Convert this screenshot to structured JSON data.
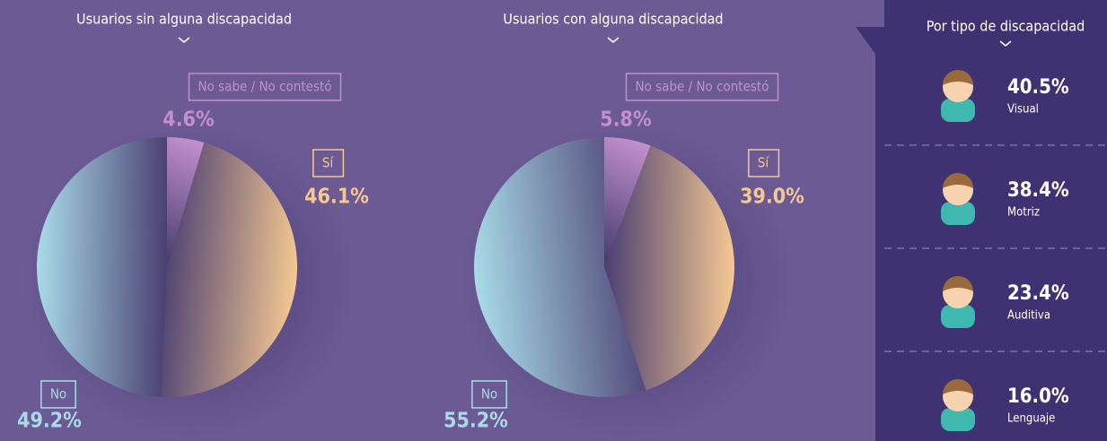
{
  "chart_data": [
    {
      "type": "pie",
      "title": "Usuarios sin alguna discapacidad",
      "categories": [
        "No sabe / No contestó",
        "Sí",
        "No"
      ],
      "values": [
        4.6,
        46.1,
        49.2
      ],
      "value_labels": [
        "4.6%",
        "46.1%",
        "49.2%"
      ],
      "colors": [
        "#c290cc",
        "#f5c892",
        "#a9dbe7"
      ]
    },
    {
      "type": "pie",
      "title": "Usuarios con alguna discapacidad",
      "categories": [
        "No sabe / No contestó",
        "Sí",
        "No"
      ],
      "values": [
        5.8,
        39.0,
        55.2
      ],
      "value_labels": [
        "5.8%",
        "39.0%",
        "55.2%"
      ],
      "colors": [
        "#c290cc",
        "#f5c892",
        "#a9dbe7"
      ]
    }
  ],
  "panel": {
    "title": "Por tipo de discapacidad",
    "items": [
      {
        "pct": "40.5%",
        "name": "Visual"
      },
      {
        "pct": "38.4%",
        "name": "Motriz"
      },
      {
        "pct": "23.4%",
        "name": "Auditiva"
      },
      {
        "pct": "16.0%",
        "name": "Lenguaje"
      }
    ]
  }
}
